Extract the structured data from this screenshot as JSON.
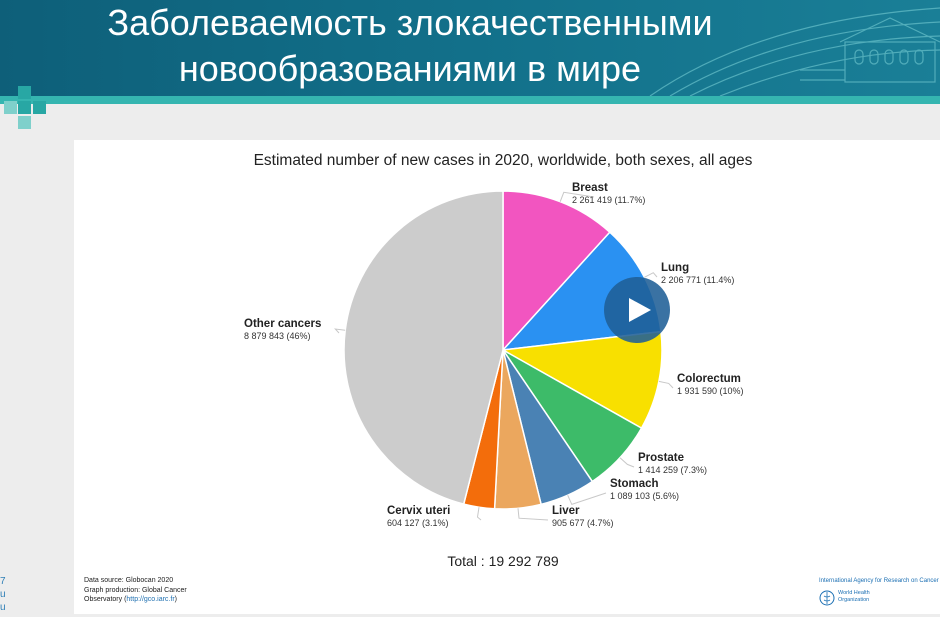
{
  "slide": {
    "title_line1": "Заболеваемость злокачественными",
    "title_line2": "новообразованиями в мире",
    "colors": {
      "header": "#12708a",
      "accent": "#35b5b0"
    },
    "page_hint_chars": [
      "7",
      "u",
      "u"
    ]
  },
  "chart_data": {
    "type": "pie",
    "title": "Estimated number of new cases in 2020, worldwide, both sexes, all ages",
    "total_label": "Total : 19 292 789",
    "slices": [
      {
        "name": "Breast",
        "value": 2261419,
        "value_label": "2 261 419 (11.7%)",
        "color": "#f255c0"
      },
      {
        "name": "Lung",
        "value": 2206771,
        "value_label": "2 206 771 (11.4%)",
        "color": "#2a91f2"
      },
      {
        "name": "Colorectum",
        "value": 1931590,
        "value_label": "1 931 590 (10%)",
        "color": "#f8e000"
      },
      {
        "name": "Prostate",
        "value": 1414259,
        "value_label": "1 414 259 (7.3%)",
        "color": "#3dbb69"
      },
      {
        "name": "Stomach",
        "value": 1089103,
        "value_label": "1 089 103 (5.6%)",
        "color": "#4a82b4"
      },
      {
        "name": "Liver",
        "value": 905677,
        "value_label": "905 677 (4.7%)",
        "color": "#eba75e"
      },
      {
        "name": "Cervix uteri",
        "value": 604127,
        "value_label": "604 127 (3.1%)",
        "color": "#f36d0b"
      },
      {
        "name": "Other cancers",
        "value": 8879843,
        "value_label": "8 879 843 (46%)",
        "color": "#cccccc"
      }
    ]
  },
  "footer": {
    "source_line1": "Data source: Globocan 2020",
    "source_line2": "Graph production: Global Cancer",
    "source_line3_prefix": "Observatory (",
    "source_link": "http://gco.iarc.fr",
    "source_line3_suffix": ")",
    "iarc_text": "International Agency for Research on Cancer",
    "who_line1": "World Health",
    "who_line2": "Organization"
  },
  "video_overlay": {
    "icon": "play-icon"
  }
}
